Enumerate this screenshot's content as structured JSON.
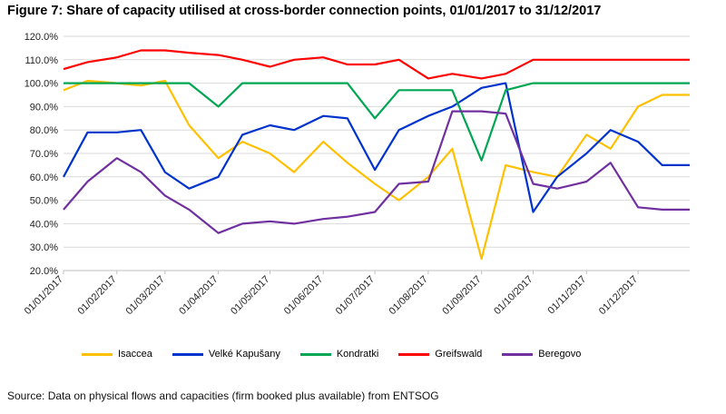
{
  "figure": {
    "title": "Figure 7: Share of capacity utilised at cross-border connection points, 01/01/2017 to 31/12/2017",
    "source": "Source: Data on physical flows and capacities (firm booked plus available) from ENTSOG"
  },
  "chart_data": {
    "type": "line",
    "title": "Figure 7: Share of capacity utilised at cross-border connection points, 01/01/2017 to 31/12/2017",
    "xlabel": "",
    "ylabel": "",
    "ylim": [
      20,
      120
    ],
    "yticks": [
      "20.0%",
      "30.0%",
      "40.0%",
      "50.0%",
      "60.0%",
      "70.0%",
      "80.0%",
      "90.0%",
      "100.0%",
      "110.0%",
      "120.0%"
    ],
    "xticks": [
      "01/01/2017",
      "01/02/2017",
      "01/03/2017",
      "01/04/2017",
      "01/05/2017",
      "01/06/2017",
      "01/07/2017",
      "01/08/2017",
      "01/09/2017",
      "01/10/2017",
      "01/11/2017",
      "01/12/2017"
    ],
    "grid": true,
    "legend_position": "bottom",
    "x_unit": "date",
    "series": [
      {
        "name": "Isaccea",
        "color": "#FFC000",
        "x": [
          "01/01/2017",
          "15/01/2017",
          "01/02/2017",
          "15/02/2017",
          "01/03/2017",
          "15/03/2017",
          "01/04/2017",
          "15/04/2017",
          "01/05/2017",
          "15/05/2017",
          "01/06/2017",
          "15/06/2017",
          "01/07/2017",
          "15/07/2017",
          "01/08/2017",
          "15/08/2017",
          "01/09/2017",
          "15/09/2017",
          "01/10/2017",
          "15/10/2017",
          "01/11/2017",
          "15/11/2017",
          "01/12/2017",
          "15/12/2017",
          "31/12/2017"
        ],
        "values": [
          97,
          101,
          100,
          99,
          101,
          82,
          68,
          75,
          70,
          62,
          75,
          66,
          57,
          50,
          60,
          72,
          25,
          65,
          62,
          60,
          78,
          72,
          90,
          95,
          95
        ]
      },
      {
        "name": "Velké Kapušany",
        "color": "#0033CC",
        "x": [
          "01/01/2017",
          "15/01/2017",
          "01/02/2017",
          "15/02/2017",
          "01/03/2017",
          "15/03/2017",
          "01/04/2017",
          "15/04/2017",
          "01/05/2017",
          "15/05/2017",
          "01/06/2017",
          "15/06/2017",
          "01/07/2017",
          "15/07/2017",
          "01/08/2017",
          "15/08/2017",
          "01/09/2017",
          "15/09/2017",
          "01/10/2017",
          "15/10/2017",
          "01/11/2017",
          "15/11/2017",
          "01/12/2017",
          "15/12/2017",
          "31/12/2017"
        ],
        "values": [
          60,
          79,
          79,
          80,
          62,
          55,
          60,
          78,
          82,
          80,
          86,
          85,
          63,
          80,
          86,
          90,
          98,
          100,
          45,
          60,
          70,
          80,
          75,
          65,
          65
        ]
      },
      {
        "name": "Kondratki",
        "color": "#00A651",
        "x": [
          "01/01/2017",
          "15/01/2017",
          "01/02/2017",
          "15/02/2017",
          "01/03/2017",
          "15/03/2017",
          "01/04/2017",
          "15/04/2017",
          "01/05/2017",
          "15/05/2017",
          "01/06/2017",
          "15/06/2017",
          "01/07/2017",
          "15/07/2017",
          "01/08/2017",
          "15/08/2017",
          "01/09/2017",
          "15/09/2017",
          "01/10/2017",
          "15/10/2017",
          "01/11/2017",
          "15/11/2017",
          "01/12/2017",
          "15/12/2017",
          "31/12/2017"
        ],
        "values": [
          100,
          100,
          100,
          100,
          100,
          100,
          90,
          100,
          100,
          100,
          100,
          100,
          85,
          97,
          97,
          97,
          67,
          97,
          100,
          100,
          100,
          100,
          100,
          100,
          100
        ]
      },
      {
        "name": "Greifswald",
        "color": "#FF0000",
        "x": [
          "01/01/2017",
          "15/01/2017",
          "01/02/2017",
          "15/02/2017",
          "01/03/2017",
          "15/03/2017",
          "01/04/2017",
          "15/04/2017",
          "01/05/2017",
          "15/05/2017",
          "01/06/2017",
          "15/06/2017",
          "01/07/2017",
          "15/07/2017",
          "01/08/2017",
          "15/08/2017",
          "01/09/2017",
          "15/09/2017",
          "01/10/2017",
          "15/10/2017",
          "01/11/2017",
          "15/11/2017",
          "01/12/2017",
          "15/12/2017",
          "31/12/2017"
        ],
        "values": [
          106,
          109,
          111,
          114,
          114,
          113,
          112,
          110,
          107,
          110,
          111,
          108,
          108,
          110,
          102,
          104,
          102,
          104,
          110,
          110,
          110,
          110,
          110,
          110,
          110
        ]
      },
      {
        "name": "Beregovo",
        "color": "#7030A0",
        "x": [
          "01/01/2017",
          "15/01/2017",
          "01/02/2017",
          "15/02/2017",
          "01/03/2017",
          "15/03/2017",
          "01/04/2017",
          "15/04/2017",
          "01/05/2017",
          "15/05/2017",
          "01/06/2017",
          "15/06/2017",
          "01/07/2017",
          "15/07/2017",
          "01/08/2017",
          "15/08/2017",
          "01/09/2017",
          "15/09/2017",
          "01/10/2017",
          "15/10/2017",
          "01/11/2017",
          "15/11/2017",
          "01/12/2017",
          "15/12/2017",
          "31/12/2017"
        ],
        "values": [
          46,
          58,
          68,
          62,
          52,
          46,
          36,
          40,
          41,
          40,
          42,
          43,
          45,
          57,
          58,
          88,
          88,
          87,
          57,
          55,
          58,
          66,
          47,
          46,
          46
        ]
      }
    ]
  }
}
